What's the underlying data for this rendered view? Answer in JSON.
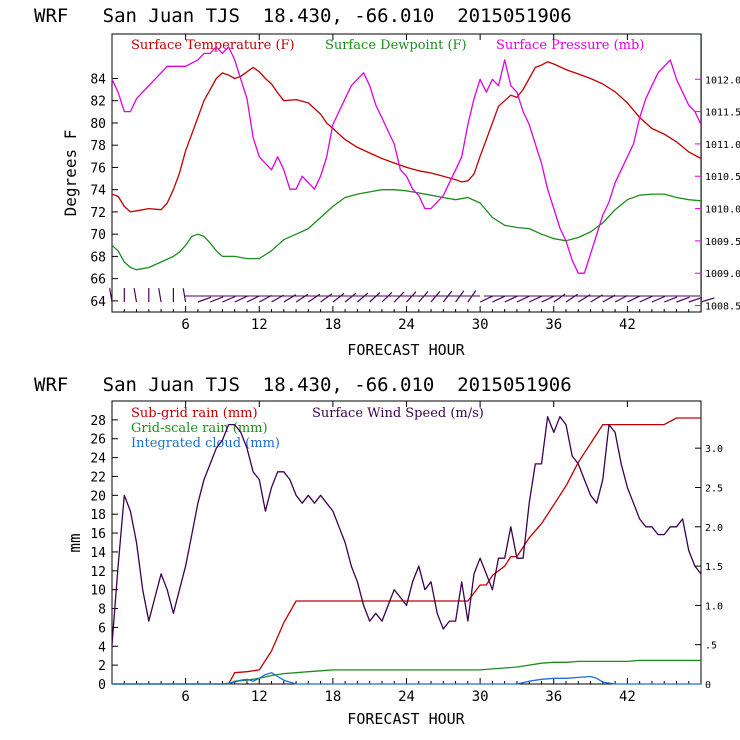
{
  "chart_data": [
    {
      "type": "line",
      "title": "WRF   San Juan TJS  18.430, -66.010  2015051906",
      "xlabel": "FORECAST HOUR",
      "ylabel": "Degrees F",
      "xlim": [
        0,
        48
      ],
      "xticks": [
        6,
        12,
        18,
        24,
        30,
        36,
        42
      ],
      "ylim": [
        63,
        88
      ],
      "yticks": [
        64,
        66,
        68,
        70,
        72,
        74,
        76,
        78,
        80,
        82,
        84
      ],
      "y2lim": [
        1008.4,
        1012.7
      ],
      "y2ticks": [
        "1008.5",
        "1009.0",
        "1009.5",
        "1010.0",
        "1010.5",
        "1011.0",
        "1011.5",
        "1012.0"
      ],
      "legend": [
        "Surface Temperature (F)",
        "Surface Dewpoint (F)",
        "Surface Pressure (mb)"
      ],
      "colors": {
        "temperature": "#c00000",
        "dewpoint": "#1e8c1e",
        "pressure": "#e000e0",
        "barbs": "#4b0060"
      },
      "series": [
        {
          "name": "Surface Temperature (F)",
          "axis": "left",
          "color": "#c00000",
          "x": [
            0,
            0.5,
            1,
            1.5,
            2,
            3,
            4,
            4.5,
            5,
            5.5,
            6,
            6.5,
            7,
            7.5,
            8,
            8.5,
            9,
            9.5,
            10,
            10.5,
            11,
            11.5,
            12,
            12.5,
            13,
            13.5,
            14,
            15,
            16,
            17,
            17.5,
            18,
            19,
            20,
            21,
            22,
            23,
            24,
            25,
            26,
            27,
            28,
            28.5,
            29,
            29.5,
            30,
            30.5,
            31,
            31.5,
            32,
            32.5,
            33,
            33.5,
            34,
            34.5,
            35,
            35.5,
            36,
            37,
            38,
            39,
            40,
            41,
            42,
            43,
            44,
            45,
            46,
            47,
            48
          ],
          "values": [
            73.6,
            73.4,
            72.5,
            72,
            72.1,
            72.3,
            72.2,
            72.8,
            74,
            75.5,
            77.5,
            79,
            80.5,
            82,
            83,
            84,
            84.5,
            84.3,
            84,
            84.2,
            84.6,
            85,
            84.6,
            84,
            83.5,
            82.7,
            82,
            82.1,
            81.8,
            80.8,
            80,
            79.5,
            78.5,
            77.8,
            77.3,
            76.8,
            76.4,
            76,
            75.7,
            75.5,
            75.2,
            74.9,
            74.7,
            74.8,
            75.4,
            77,
            78.5,
            80,
            81.5,
            82,
            82.5,
            82.3,
            83,
            84,
            85,
            85.2,
            85.5,
            85.3,
            84.8,
            84.4,
            84,
            83.5,
            82.8,
            81.8,
            80.5,
            79.5,
            79,
            78.3,
            77.4,
            76.8
          ]
        },
        {
          "name": "Surface Dewpoint (F)",
          "axis": "left",
          "color": "#1e8c1e",
          "x": [
            0,
            0.5,
            1,
            1.5,
            2,
            3,
            4,
            5,
            5.5,
            6,
            6.5,
            7,
            7.5,
            8,
            8.5,
            9,
            10,
            11,
            12,
            13,
            14,
            15,
            16,
            17,
            18,
            19,
            20,
            21,
            22,
            23,
            24,
            25,
            26,
            27,
            28,
            29,
            30,
            31,
            32,
            33,
            34,
            35,
            36,
            37,
            38,
            39,
            40,
            41,
            42,
            43,
            44,
            45,
            46,
            47,
            48
          ],
          "values": [
            69,
            68.5,
            67.5,
            67,
            66.8,
            67,
            67.5,
            68,
            68.4,
            69,
            69.8,
            70,
            69.8,
            69.2,
            68.5,
            68,
            68,
            67.8,
            67.8,
            68.5,
            69.5,
            70,
            70.5,
            71.5,
            72.5,
            73.3,
            73.6,
            73.8,
            74,
            74,
            73.9,
            73.7,
            73.5,
            73.3,
            73.1,
            73.3,
            72.8,
            71.5,
            70.8,
            70.6,
            70.5,
            70,
            69.6,
            69.4,
            69.7,
            70.2,
            71,
            72.2,
            73.1,
            73.5,
            73.6,
            73.6,
            73.3,
            73.1,
            73
          ]
        },
        {
          "name": "Surface Pressure (mb)",
          "axis": "right",
          "color": "#e000e0",
          "x": [
            0,
            0.5,
            1,
            1.5,
            2,
            3,
            4,
            4.5,
            5,
            6,
            7,
            7.5,
            8,
            8.5,
            9,
            9.5,
            10,
            10.5,
            11,
            11.5,
            12,
            12.5,
            13,
            13.5,
            14,
            14.5,
            15,
            15.5,
            16,
            16.5,
            17,
            17.5,
            18,
            18.5,
            19,
            19.5,
            20,
            20.5,
            21,
            21.5,
            22,
            22.5,
            23,
            23.5,
            24,
            24.5,
            25,
            25.5,
            26,
            26.5,
            27,
            27.5,
            28,
            28.5,
            29,
            29.5,
            30,
            30.5,
            31,
            31.5,
            32,
            32.5,
            33,
            33.5,
            34,
            34.5,
            35,
            35.5,
            36,
            36.5,
            37,
            37.5,
            38,
            38.5,
            39,
            39.5,
            40,
            40.5,
            41,
            41.5,
            42,
            42.5,
            43,
            43.5,
            44,
            44.5,
            45,
            45.5,
            46,
            46.5,
            47,
            47.5,
            48
          ],
          "values": [
            1012,
            1011.8,
            1011.5,
            1011.5,
            1011.7,
            1011.9,
            1012.1,
            1012.2,
            1012.2,
            1012.2,
            1012.3,
            1012.4,
            1012.4,
            1012.5,
            1012.4,
            1012.5,
            1012.3,
            1012,
            1011.7,
            1011.1,
            1010.8,
            1010.7,
            1010.6,
            1010.8,
            1010.6,
            1010.3,
            1010.3,
            1010.5,
            1010.4,
            1010.3,
            1010.5,
            1010.8,
            1011.3,
            1011.5,
            1011.7,
            1011.9,
            1012,
            1012.1,
            1011.9,
            1011.6,
            1011.4,
            1011.2,
            1011,
            1010.6,
            1010.5,
            1010.3,
            1010.2,
            1010,
            1010,
            1010.1,
            1010.2,
            1010.4,
            1010.6,
            1010.8,
            1011.3,
            1011.7,
            1012,
            1011.8,
            1012,
            1011.9,
            1012.3,
            1011.9,
            1011.8,
            1011.5,
            1011.3,
            1011,
            1010.7,
            1010.3,
            1010,
            1009.7,
            1009.5,
            1009.2,
            1009,
            1009,
            1009.3,
            1009.6,
            1009.9,
            1010.1,
            1010.4,
            1010.6,
            1010.8,
            1011,
            1011.4,
            1011.7,
            1011.9,
            1012.1,
            1012.2,
            1012.3,
            1012,
            1011.8,
            1011.6,
            1011.5,
            1011.3
          ]
        }
      ],
      "wind_barbs_x": [
        0,
        1,
        2,
        3,
        4,
        5,
        6,
        7,
        8,
        9,
        10,
        11,
        12,
        13,
        14,
        15,
        16,
        17,
        18,
        19,
        20,
        21,
        22,
        23,
        24,
        25,
        26,
        27,
        28,
        29,
        30,
        31,
        32,
        33,
        34,
        35,
        36,
        37,
        38,
        39,
        40,
        41,
        42,
        43,
        44,
        45,
        46,
        47,
        48
      ]
    },
    {
      "type": "line",
      "title": "WRF   San Juan TJS  18.430, -66.010  2015051906",
      "xlabel": "FORECAST HOUR",
      "ylabel": "mm",
      "xlim": [
        0,
        48
      ],
      "xticks": [
        6,
        12,
        18,
        24,
        30,
        36,
        42
      ],
      "ylim": [
        0,
        30
      ],
      "yticks": [
        0,
        2,
        4,
        6,
        8,
        10,
        12,
        14,
        16,
        18,
        20,
        22,
        24,
        26,
        28
      ],
      "y2lim": [
        0,
        3.6
      ],
      "y2ticks": [
        "0",
        ".5",
        "1.0",
        "1.5",
        "2.0",
        "2.5",
        "3.0"
      ],
      "y2tick_values": [
        0,
        0.5,
        1.0,
        1.5,
        2.0,
        2.5,
        3.0
      ],
      "legend": [
        "Sub-grid rain (mm)",
        "Surface Wind Speed (m/s)",
        "Grid-scale rain (mm)",
        "Integrated cloud (mm)"
      ],
      "series": [
        {
          "name": "Sub-grid rain (mm)",
          "axis": "left",
          "color": "#c00000",
          "x": [
            0,
            9.5,
            10,
            11,
            12,
            13,
            14,
            15,
            16,
            17,
            18,
            19,
            20,
            21,
            22,
            23,
            24,
            25,
            26,
            27,
            28,
            29,
            30,
            30.5,
            31,
            32,
            32.5,
            33,
            34,
            35,
            36,
            37,
            38,
            39,
            40,
            41,
            42,
            43,
            44,
            45,
            46,
            47,
            48
          ],
          "values": [
            0,
            0,
            1.2,
            1.3,
            1.5,
            3.5,
            6.5,
            8.8,
            8.8,
            8.8,
            8.8,
            8.8,
            8.8,
            8.8,
            8.8,
            8.8,
            8.8,
            8.8,
            8.8,
            8.8,
            8.8,
            8.8,
            10.5,
            10.5,
            11.5,
            12.5,
            13.5,
            13.5,
            15.5,
            17,
            19,
            21,
            23.5,
            25.5,
            27.5,
            27.5,
            27.5,
            27.5,
            27.5,
            27.5,
            28.2,
            28.2,
            28.2
          ]
        },
        {
          "name": "Grid-scale rain (mm)",
          "axis": "left",
          "color": "#1e8c1e",
          "x": [
            0,
            9.5,
            10,
            11,
            12,
            13,
            14,
            15,
            16,
            17,
            18,
            19,
            20,
            21,
            22,
            23,
            24,
            25,
            26,
            27,
            28,
            29,
            30,
            31,
            32,
            33,
            34,
            35,
            36,
            37,
            38,
            39,
            40,
            41,
            42,
            43,
            44,
            45,
            46,
            47,
            48
          ],
          "values": [
            0,
            0,
            0.3,
            0.4,
            0.6,
            0.9,
            1.1,
            1.2,
            1.3,
            1.4,
            1.5,
            1.5,
            1.5,
            1.5,
            1.5,
            1.5,
            1.5,
            1.5,
            1.5,
            1.5,
            1.5,
            1.5,
            1.5,
            1.6,
            1.7,
            1.8,
            2,
            2.2,
            2.3,
            2.3,
            2.4,
            2.4,
            2.4,
            2.4,
            2.4,
            2.5,
            2.5,
            2.5,
            2.5,
            2.5,
            2.5
          ]
        },
        {
          "name": "Integrated cloud (mm)",
          "axis": "left",
          "color": "#1f6fd0",
          "x": [
            0,
            9,
            10,
            10.5,
            11,
            11.5,
            12,
            12.5,
            13,
            13.5,
            14,
            14.5,
            15,
            16,
            30,
            33,
            34,
            35,
            36,
            37,
            38,
            39,
            39.5,
            40,
            41,
            48
          ],
          "values": [
            0,
            0,
            0.2,
            0.4,
            0.5,
            0.3,
            0.6,
            1,
            1.2,
            0.8,
            0.4,
            0.2,
            0,
            0,
            0,
            0,
            0.3,
            0.5,
            0.6,
            0.6,
            0.7,
            0.8,
            0.6,
            0.2,
            0,
            0
          ]
        },
        {
          "name": "Surface Wind Speed (m/s)",
          "axis": "right",
          "color": "#3c0050",
          "x": [
            0,
            0.5,
            1,
            1.5,
            2,
            2.5,
            3,
            3.5,
            4,
            4.5,
            5,
            5.5,
            6,
            6.5,
            7,
            7.5,
            8,
            8.5,
            9,
            9.5,
            10,
            10.5,
            11,
            11.5,
            12,
            12.5,
            13,
            13.5,
            14,
            14.5,
            15,
            15.5,
            16,
            16.5,
            17,
            17.5,
            18,
            18.5,
            19,
            19.5,
            20,
            20.5,
            21,
            21.5,
            22,
            22.5,
            23,
            23.5,
            24,
            24.5,
            25,
            25.5,
            26,
            26.5,
            27,
            27.5,
            28,
            28.5,
            29,
            29.5,
            30,
            30.5,
            31,
            31.5,
            32,
            32.5,
            33,
            33.5,
            34,
            34.5,
            35,
            35.5,
            36,
            36.5,
            37,
            37.5,
            38,
            38.5,
            39,
            39.5,
            40,
            40.5,
            41,
            41.5,
            42,
            42.5,
            43,
            43.5,
            44,
            44.5,
            45,
            45.5,
            46,
            46.5,
            47,
            47.5,
            48
          ],
          "values": [
            0.5,
            1.5,
            2.4,
            2.2,
            1.8,
            1.2,
            0.8,
            1.1,
            1.4,
            1.2,
            0.9,
            1.2,
            1.5,
            1.9,
            2.3,
            2.6,
            2.8,
            3.0,
            3.1,
            3.3,
            3.3,
            3.2,
            3.0,
            2.7,
            2.6,
            2.2,
            2.5,
            2.7,
            2.7,
            2.6,
            2.4,
            2.3,
            2.4,
            2.3,
            2.4,
            2.3,
            2.2,
            2.0,
            1.8,
            1.5,
            1.3,
            1.0,
            0.8,
            0.9,
            0.8,
            1.0,
            1.2,
            1.1,
            1.0,
            1.3,
            1.5,
            1.2,
            1.3,
            0.9,
            0.7,
            0.8,
            0.8,
            1.3,
            0.8,
            1.4,
            1.6,
            1.4,
            1.2,
            1.6,
            1.6,
            2.0,
            1.6,
            1.6,
            2.3,
            2.8,
            2.8,
            3.4,
            3.2,
            3.4,
            3.3,
            2.9,
            2.8,
            2.6,
            2.4,
            2.3,
            2.6,
            3.3,
            3.2,
            2.8,
            2.5,
            2.3,
            2.1,
            2.0,
            2.0,
            1.9,
            1.9,
            2.0,
            2.0,
            2.1,
            1.7,
            1.5,
            1.4
          ]
        }
      ]
    }
  ]
}
